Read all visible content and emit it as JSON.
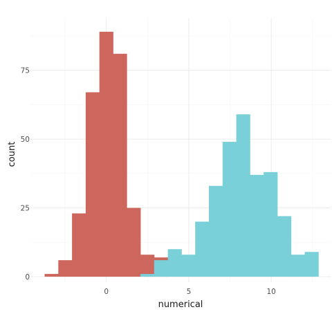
{
  "chart_data": {
    "type": "bar",
    "title": "",
    "xlabel": "numerical",
    "ylabel": "count",
    "xlim": [
      -4.6,
      13.6
    ],
    "ylim": [
      -2,
      94
    ],
    "x_ticks": [
      0,
      5,
      10
    ],
    "y_ticks": [
      0,
      25,
      50,
      75
    ],
    "grid": true,
    "legend": "none",
    "bin_width": 0.83,
    "series": [
      {
        "color": "#cd665c",
        "bins": [
          {
            "start": -3.74,
            "end": -2.91,
            "count": 1
          },
          {
            "start": -2.91,
            "end": -2.08,
            "count": 6
          },
          {
            "start": -2.08,
            "end": -1.25,
            "count": 23
          },
          {
            "start": -1.25,
            "end": -0.42,
            "count": 67
          },
          {
            "start": -0.42,
            "end": 0.41,
            "count": 89
          },
          {
            "start": 0.41,
            "end": 1.24,
            "count": 81
          },
          {
            "start": 1.24,
            "end": 2.07,
            "count": 25
          },
          {
            "start": 2.07,
            "end": 2.9,
            "count": 8
          },
          {
            "start": 2.9,
            "end": 3.73,
            "count": 7
          }
        ]
      },
      {
        "color": "#7ad0d8",
        "bins": [
          {
            "start": 2.07,
            "end": 2.9,
            "count": 1
          },
          {
            "start": 2.9,
            "end": 3.73,
            "count": 6
          },
          {
            "start": 3.73,
            "end": 4.56,
            "count": 10
          },
          {
            "start": 4.56,
            "end": 5.39,
            "count": 8
          },
          {
            "start": 5.39,
            "end": 6.22,
            "count": 20
          },
          {
            "start": 6.22,
            "end": 7.05,
            "count": 33
          },
          {
            "start": 7.05,
            "end": 7.88,
            "count": 49
          },
          {
            "start": 7.88,
            "end": 8.71,
            "count": 59
          },
          {
            "start": 8.71,
            "end": 9.54,
            "count": 37
          },
          {
            "start": 9.54,
            "end": 10.37,
            "count": 38
          },
          {
            "start": 10.37,
            "end": 11.2,
            "count": 22
          },
          {
            "start": 11.2,
            "end": 12.03,
            "count": 8
          },
          {
            "start": 12.03,
            "end": 12.86,
            "count": 9
          }
        ]
      }
    ]
  }
}
